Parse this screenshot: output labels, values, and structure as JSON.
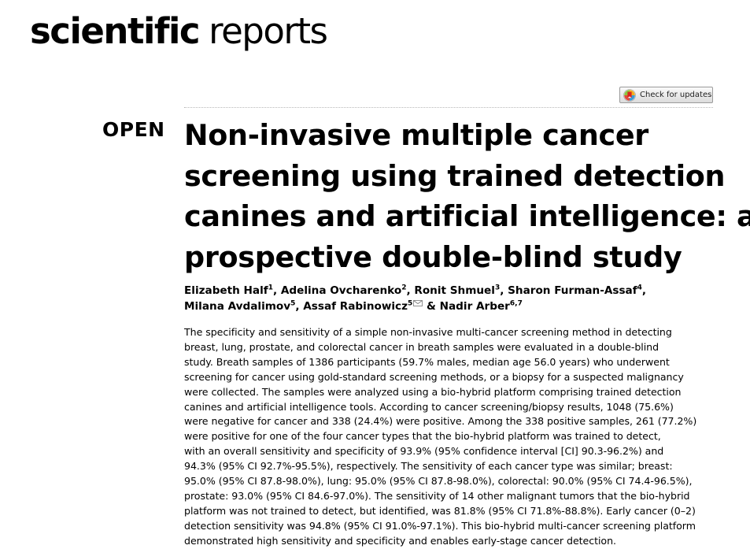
{
  "journal": {
    "name_bold": "scientific",
    "name_light": "reports"
  },
  "check_updates_label": "Check for updates",
  "open_label": "OPEN",
  "title_lines": [
    "Non-invasive multiple cancer",
    "screening using trained detection",
    "canines and artificial intelligence: a",
    "prospective double-blind study"
  ],
  "authors": {
    "line1": [
      {
        "name": "Elizabeth Half",
        "aff": "1",
        "sep": ", "
      },
      {
        "name": "Adelina Ovcharenko",
        "aff": "2",
        "sep": ", "
      },
      {
        "name": "Ronit Shmuel",
        "aff": "3",
        "sep": ", "
      },
      {
        "name": "Sharon Furman-Assaf",
        "aff": "4",
        "sep": ","
      }
    ],
    "line2": [
      {
        "name": "Milana Avdalimov",
        "aff": "5",
        "sep": ", "
      },
      {
        "name": "Assaf Rabinowicz",
        "aff": "5",
        "sep": " & "
      },
      {
        "name": "Nadir Arber",
        "aff": "6,7",
        "sep": ""
      }
    ]
  },
  "abstract_lines": [
    "The specificity and sensitivity of a simple non-invasive multi-cancer screening method in detecting",
    "breast, lung, prostate, and colorectal cancer in breath samples were evaluated in a double-blind",
    "study. Breath samples of 1386 participants (59.7% males, median age 56.0 years) who underwent",
    "screening for cancer using gold-standard screening methods, or a biopsy for a suspected malignancy",
    "were collected. The samples were analyzed using a bio-hybrid platform comprising trained detection",
    "canines and artificial intelligence tools. According to cancer screening/biopsy results, 1048 (75.6%)",
    "were negative for cancer and 338 (24.4%) were positive. Among the 338 positive samples, 261 (77.2%)",
    "were positive for one of the four cancer types that the bio-hybrid platform was trained to detect,",
    "with an overall sensitivity and specificity of 93.9% (95% confidence interval [CI] 90.3-96.2%) and",
    "94.3% (95% CI 92.7%-95.5%), respectively. The sensitivity of each cancer type was similar; breast:",
    "95.0% (95% CI 87.8-98.0%), lung: 95.0% (95% CI 87.8-98.0%), colorectal: 90.0% (95% CI 74.4-96.5%),",
    "prostate: 93.0% (95% CI 84.6-97.0%). The sensitivity of 14 other malignant tumors that the bio-hybrid",
    "platform was not trained to detect, but identified, was 81.8% (95% CI 71.8%-88.8%). Early cancer (0–2)",
    "detection sensitivity was 94.8% (95% CI 91.0%-97.1%). This bio-hybrid multi-cancer screening platform",
    "demonstrated high sensitivity and specificity and enables early-stage cancer detection."
  ]
}
